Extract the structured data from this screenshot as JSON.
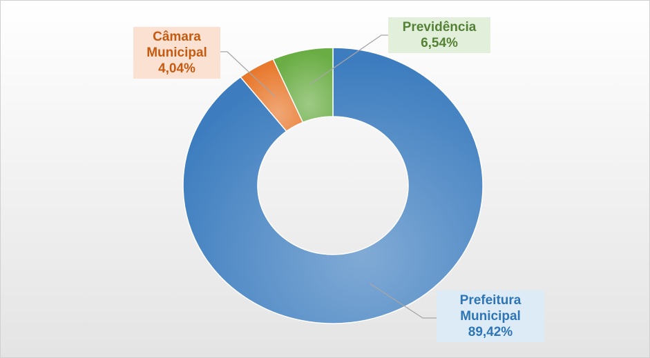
{
  "chart_data": {
    "type": "donut",
    "categories": [
      "Prefeitura Municipal",
      "Câmara Municipal",
      "Previdência"
    ],
    "values": [
      89.42,
      4.04,
      6.54
    ],
    "value_labels": [
      "89,42%",
      "4,04%",
      "6,54%"
    ],
    "colors": [
      "#3d7dbf",
      "#e8782c",
      "#6aad44"
    ]
  }
}
